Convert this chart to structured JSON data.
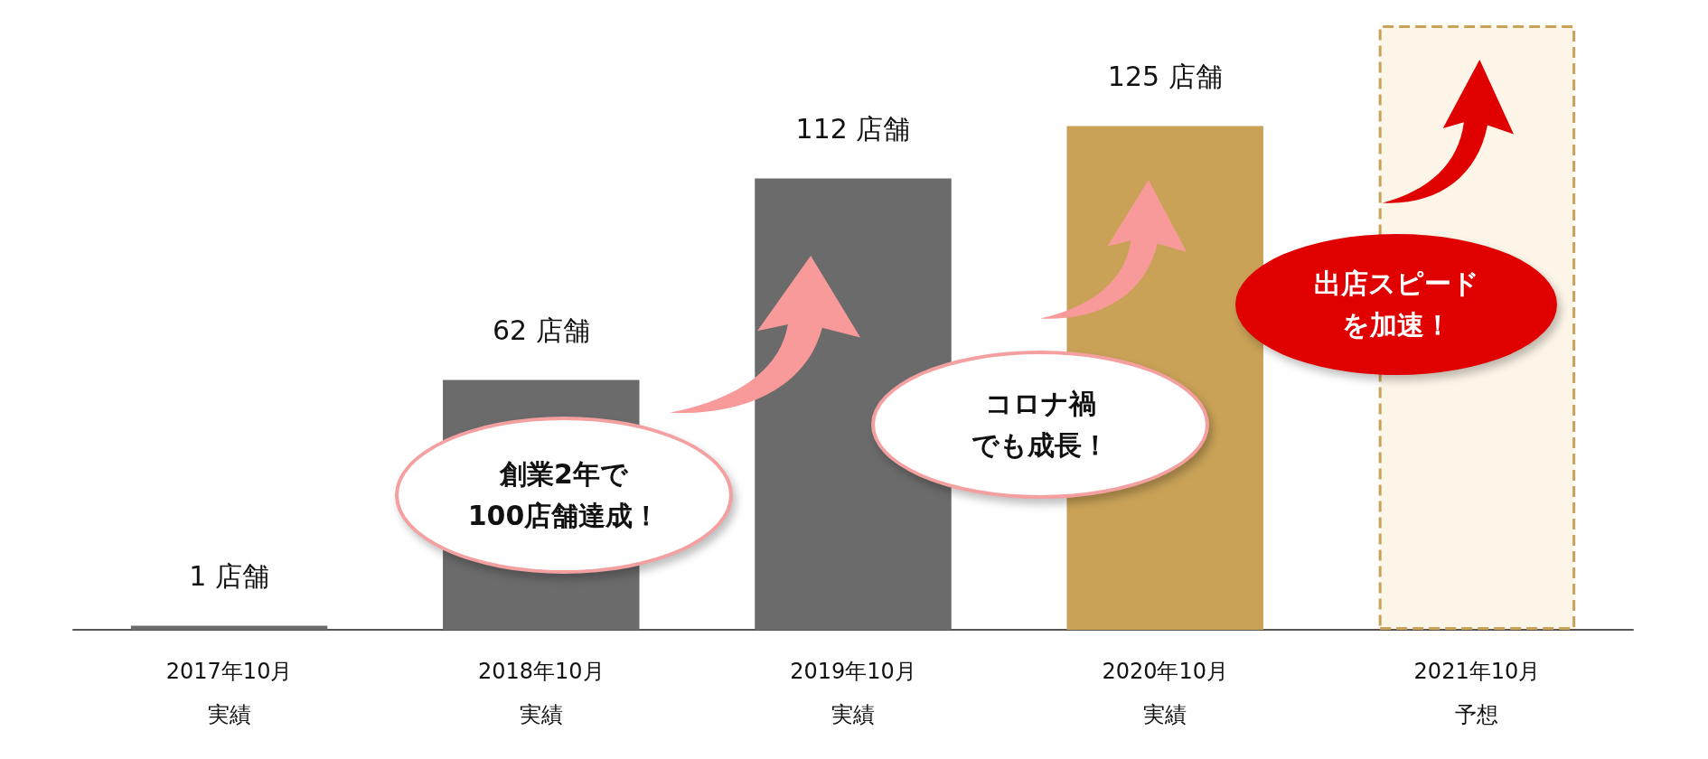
{
  "chart_data": {
    "type": "bar",
    "categories": [
      "2017年10月実績",
      "2018年10月実績",
      "2019年10月実績",
      "2020年10月実績",
      "2021年10月予想"
    ],
    "values": [
      1,
      62,
      112,
      125,
      150
    ],
    "value_labels": [
      "1 店舗",
      "62 店舗",
      "112 店舗",
      "125 店舗",
      null
    ],
    "colors": [
      "#6b6b6b",
      "#6b6b6b",
      "#6b6b6b",
      "#c9a257",
      "#fdf5e8"
    ],
    "annotations": [
      "創業2年で",
      "100店舗達成！",
      "コロナ禍",
      "でも成長！",
      "出店スピード",
      "を加速！"
    ],
    "grid": false
  }
}
